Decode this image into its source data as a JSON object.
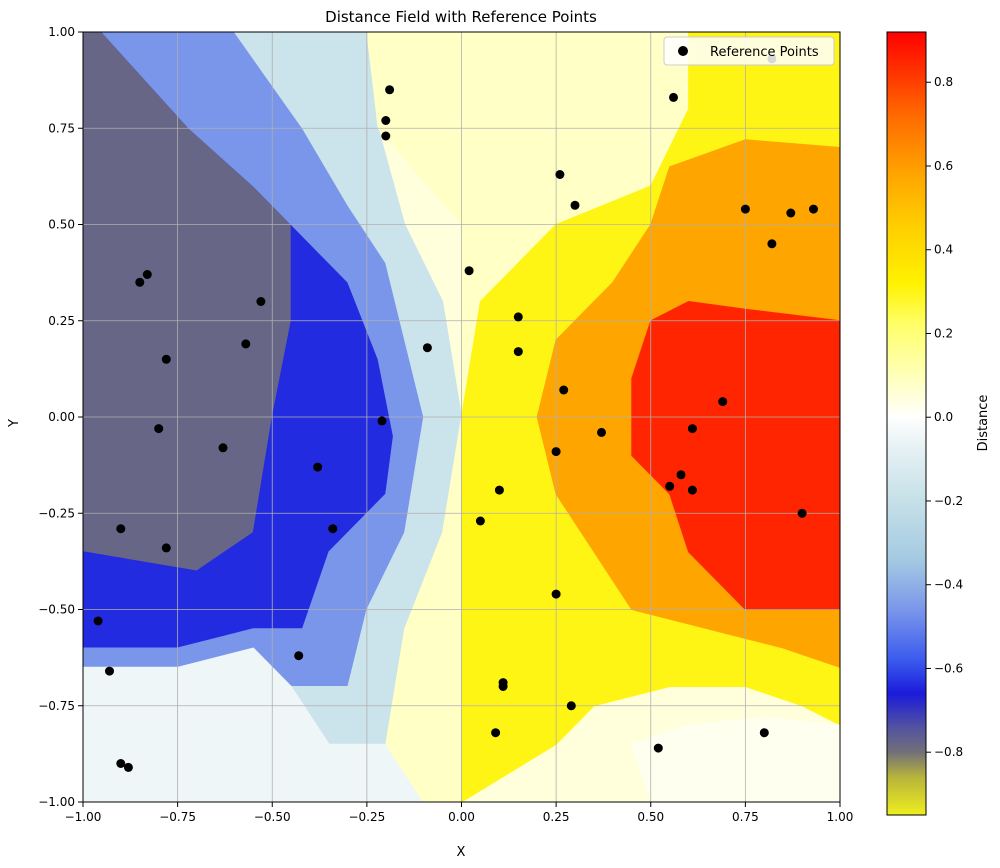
{
  "chart_data": {
    "type": "contour",
    "title": "Distance Field with Reference Points",
    "xlabel": "X",
    "ylabel": "Y",
    "xlim": [
      -1.0,
      1.0
    ],
    "ylim": [
      -1.0,
      1.0
    ],
    "x_ticks": [
      -1.0,
      -0.75,
      -0.5,
      -0.25,
      0.0,
      0.25,
      0.5,
      0.75,
      1.0
    ],
    "y_ticks": [
      -1.0,
      -0.75,
      -0.5,
      -0.25,
      0.0,
      0.25,
      0.5,
      0.75,
      1.0
    ],
    "x_tick_labels": [
      "−1.00",
      "−0.75",
      "−0.50",
      "−0.25",
      "0.00",
      "0.25",
      "0.50",
      "0.75",
      "1.00"
    ],
    "y_tick_labels": [
      "−1.00",
      "−0.75",
      "−0.50",
      "−0.25",
      "0.00",
      "0.25",
      "0.50",
      "0.75",
      "1.00"
    ],
    "grid": true,
    "legend": {
      "location": "top-right",
      "entries": [
        "Reference Points"
      ]
    },
    "colorbar": {
      "label": "Distance",
      "range": [
        -0.95,
        0.92
      ],
      "ticks": [
        -0.8,
        -0.6,
        -0.4,
        -0.2,
        0.0,
        0.2,
        0.4,
        0.6,
        0.8
      ],
      "tick_labels": [
        "−0.8",
        "−0.6",
        "−0.4",
        "−0.2",
        "0.0",
        "0.2",
        "0.4",
        "0.6",
        "0.8"
      ],
      "colormap": [
        {
          "v": -0.95,
          "c": "#eeee1e"
        },
        {
          "v": -0.86,
          "c": "#b8b43c"
        },
        {
          "v": -0.8,
          "c": "#727078"
        },
        {
          "v": -0.74,
          "c": "#5252a2"
        },
        {
          "v": -0.66,
          "c": "#1b1bdb"
        },
        {
          "v": -0.58,
          "c": "#3b5bee"
        },
        {
          "v": -0.46,
          "c": "#7a96ea"
        },
        {
          "v": -0.34,
          "c": "#a4cae2"
        },
        {
          "v": -0.2,
          "c": "#c6e0e8"
        },
        {
          "v": -0.08,
          "c": "#e4f0f4"
        },
        {
          "v": 0.0,
          "c": "#fffffe"
        },
        {
          "v": 0.08,
          "c": "#ffffc6"
        },
        {
          "v": 0.22,
          "c": "#ffff6a"
        },
        {
          "v": 0.32,
          "c": "#fff200"
        },
        {
          "v": 0.46,
          "c": "#ffcd00"
        },
        {
          "v": 0.58,
          "c": "#ffa500"
        },
        {
          "v": 0.72,
          "c": "#ff6a00"
        },
        {
          "v": 0.92,
          "c": "#ff0000"
        }
      ]
    },
    "field_regions": [
      {
        "name": "yellow-lobe-left",
        "polygon": [
          [
            -1.0,
            0.35
          ],
          [
            -0.8,
            0.18
          ],
          [
            -0.6,
            0.16
          ],
          [
            -0.55,
            0.05
          ],
          [
            -0.6,
            -0.3
          ],
          [
            -0.75,
            -0.3
          ],
          [
            -1.0,
            -0.25
          ]
        ],
        "value": -0.88
      },
      {
        "name": "gray-wedge-upper-left",
        "polygon": [
          [
            -1.0,
            1.0
          ],
          [
            -0.95,
            1.0
          ],
          [
            -0.72,
            0.75
          ],
          [
            -0.55,
            0.6
          ],
          [
            -0.45,
            0.5
          ],
          [
            -0.45,
            0.25
          ],
          [
            -0.5,
            0.0
          ],
          [
            -0.55,
            -0.3
          ],
          [
            -0.7,
            -0.4
          ],
          [
            -1.0,
            -0.35
          ],
          [
            -1.0,
            0.35
          ],
          [
            -0.8,
            0.18
          ],
          [
            -0.6,
            0.16
          ],
          [
            -0.55,
            0.05
          ],
          [
            -0.6,
            -0.3
          ],
          [
            -0.75,
            -0.3
          ],
          [
            -1.0,
            -0.25
          ]
        ],
        "value": -0.78
      },
      {
        "name": "blue-band",
        "polygon": [
          [
            -0.95,
            1.0
          ],
          [
            -0.72,
            0.75
          ],
          [
            -0.55,
            0.6
          ],
          [
            -0.45,
            0.5
          ],
          [
            -0.3,
            0.35
          ],
          [
            -0.22,
            0.15
          ],
          [
            -0.18,
            -0.05
          ],
          [
            -0.2,
            -0.2
          ],
          [
            -0.35,
            -0.35
          ],
          [
            -0.42,
            -0.55
          ],
          [
            -0.55,
            -0.55
          ],
          [
            -0.75,
            -0.6
          ],
          [
            -1.0,
            -0.6
          ],
          [
            -1.0,
            -0.35
          ],
          [
            -0.7,
            -0.4
          ],
          [
            -0.55,
            -0.3
          ],
          [
            -0.5,
            0.0
          ],
          [
            -0.45,
            0.25
          ],
          [
            -0.45,
            0.5
          ],
          [
            -0.55,
            0.6
          ],
          [
            -0.72,
            0.75
          ]
        ],
        "value": -0.64
      },
      {
        "name": "light-blue-band",
        "polygon": [
          [
            -0.9,
            1.0
          ],
          [
            -0.6,
            1.0
          ],
          [
            -0.42,
            0.75
          ],
          [
            -0.3,
            0.55
          ],
          [
            -0.2,
            0.4
          ],
          [
            -0.15,
            0.2
          ],
          [
            -0.1,
            0.0
          ],
          [
            -0.15,
            -0.3
          ],
          [
            -0.25,
            -0.5
          ],
          [
            -0.3,
            -0.7
          ],
          [
            -0.45,
            -0.7
          ],
          [
            -0.55,
            -0.6
          ],
          [
            -0.75,
            -0.65
          ],
          [
            -1.0,
            -0.65
          ],
          [
            -1.0,
            -0.6
          ],
          [
            -0.75,
            -0.6
          ],
          [
            -0.55,
            -0.55
          ],
          [
            -0.42,
            -0.55
          ],
          [
            -0.35,
            -0.35
          ],
          [
            -0.2,
            -0.2
          ],
          [
            -0.18,
            -0.05
          ],
          [
            -0.22,
            0.15
          ],
          [
            -0.3,
            0.35
          ],
          [
            -0.45,
            0.5
          ],
          [
            -0.55,
            0.6
          ],
          [
            -0.72,
            0.75
          ],
          [
            -0.95,
            1.0
          ]
        ],
        "value": -0.46
      },
      {
        "name": "pale-cyan-band",
        "polygon": [
          [
            -0.6,
            1.0
          ],
          [
            -0.25,
            1.0
          ],
          [
            -0.22,
            0.75
          ],
          [
            -0.15,
            0.5
          ],
          [
            -0.05,
            0.3
          ],
          [
            0.0,
            0.0
          ],
          [
            -0.05,
            -0.3
          ],
          [
            -0.15,
            -0.55
          ],
          [
            -0.2,
            -0.85
          ],
          [
            -0.35,
            -0.85
          ],
          [
            -0.45,
            -0.7
          ],
          [
            -0.3,
            -0.7
          ],
          [
            -0.25,
            -0.5
          ],
          [
            -0.15,
            -0.3
          ],
          [
            -0.1,
            0.0
          ],
          [
            -0.15,
            0.2
          ],
          [
            -0.2,
            0.4
          ],
          [
            -0.3,
            0.55
          ],
          [
            -0.42,
            0.75
          ]
        ],
        "value": -0.18
      },
      {
        "name": "white-fringe-bottom",
        "polygon": [
          [
            -1.0,
            -0.65
          ],
          [
            -0.75,
            -0.65
          ],
          [
            -0.55,
            -0.6
          ],
          [
            -0.45,
            -0.7
          ],
          [
            -0.35,
            -0.85
          ],
          [
            -0.2,
            -0.85
          ],
          [
            -0.1,
            -1.0
          ],
          [
            -1.0,
            -1.0
          ]
        ],
        "value": -0.05
      },
      {
        "name": "pale-yellow-field",
        "polygon": [
          [
            -0.25,
            1.0
          ],
          [
            0.6,
            1.0
          ],
          [
            0.6,
            0.8
          ],
          [
            0.5,
            0.6
          ],
          [
            0.25,
            0.5
          ],
          [
            0.05,
            0.3
          ],
          [
            0.0,
            0.0
          ],
          [
            -0.05,
            -0.3
          ],
          [
            -0.15,
            -0.55
          ],
          [
            -0.2,
            -0.85
          ],
          [
            -0.1,
            -1.0
          ],
          [
            0.0,
            -1.0
          ],
          [
            0.0,
            0.5
          ],
          [
            -0.22,
            0.75
          ]
        ],
        "value": 0.08
      },
      {
        "name": "yellow-field",
        "polygon": [
          [
            0.6,
            1.0
          ],
          [
            1.0,
            1.0
          ],
          [
            1.0,
            -0.8
          ],
          [
            0.9,
            -0.75
          ],
          [
            0.75,
            -0.7
          ],
          [
            0.55,
            -0.7
          ],
          [
            0.35,
            -0.75
          ],
          [
            0.25,
            -0.85
          ],
          [
            0.0,
            -1.0
          ],
          [
            0.0,
            0.0
          ],
          [
            0.05,
            0.3
          ],
          [
            0.25,
            0.5
          ],
          [
            0.5,
            0.6
          ],
          [
            0.6,
            0.8
          ]
        ],
        "value": 0.3
      },
      {
        "name": "orange-field",
        "polygon": [
          [
            0.55,
            0.65
          ],
          [
            0.75,
            0.72
          ],
          [
            1.0,
            0.7
          ],
          [
            1.0,
            -0.65
          ],
          [
            0.85,
            -0.6
          ],
          [
            0.65,
            -0.55
          ],
          [
            0.45,
            -0.5
          ],
          [
            0.35,
            -0.35
          ],
          [
            0.25,
            -0.2
          ],
          [
            0.2,
            0.0
          ],
          [
            0.25,
            0.2
          ],
          [
            0.4,
            0.35
          ],
          [
            0.5,
            0.5
          ]
        ],
        "value": 0.58
      },
      {
        "name": "red-core",
        "polygon": [
          [
            0.5,
            0.25
          ],
          [
            0.6,
            0.3
          ],
          [
            0.75,
            0.28
          ],
          [
            1.0,
            0.25
          ],
          [
            1.0,
            -0.5
          ],
          [
            0.9,
            -0.5
          ],
          [
            0.75,
            -0.5
          ],
          [
            0.6,
            -0.35
          ],
          [
            0.55,
            -0.2
          ],
          [
            0.45,
            -0.1
          ],
          [
            0.45,
            0.1
          ]
        ],
        "value": 0.85
      },
      {
        "name": "pale-patch-bottom-right",
        "polygon": [
          [
            0.45,
            -0.85
          ],
          [
            0.6,
            -0.8
          ],
          [
            0.8,
            -0.78
          ],
          [
            1.0,
            -0.8
          ],
          [
            1.0,
            -1.0
          ],
          [
            0.5,
            -1.0
          ]
        ],
        "value": 0.02
      }
    ],
    "series": [
      {
        "name": "Reference Points",
        "color": "#000000",
        "points": [
          [
            0.82,
            0.93
          ],
          [
            0.56,
            0.83
          ],
          [
            -0.19,
            0.85
          ],
          [
            -0.2,
            0.77
          ],
          [
            -0.2,
            0.73
          ],
          [
            0.26,
            0.63
          ],
          [
            0.3,
            0.55
          ],
          [
            0.75,
            0.54
          ],
          [
            0.87,
            0.53
          ],
          [
            0.93,
            0.54
          ],
          [
            0.82,
            0.45
          ],
          [
            0.02,
            0.38
          ],
          [
            -0.85,
            0.35
          ],
          [
            -0.83,
            0.37
          ],
          [
            -0.53,
            0.3
          ],
          [
            0.15,
            0.26
          ],
          [
            -0.57,
            0.19
          ],
          [
            -0.09,
            0.18
          ],
          [
            0.15,
            0.17
          ],
          [
            -0.78,
            0.15
          ],
          [
            0.27,
            0.07
          ],
          [
            0.69,
            0.04
          ],
          [
            -0.8,
            -0.03
          ],
          [
            0.37,
            -0.04
          ],
          [
            0.61,
            -0.03
          ],
          [
            -0.21,
            -0.01
          ],
          [
            -0.63,
            -0.08
          ],
          [
            0.25,
            -0.09
          ],
          [
            -0.38,
            -0.13
          ],
          [
            0.58,
            -0.15
          ],
          [
            0.55,
            -0.18
          ],
          [
            0.61,
            -0.19
          ],
          [
            0.1,
            -0.19
          ],
          [
            0.05,
            -0.27
          ],
          [
            0.9,
            -0.25
          ],
          [
            -0.9,
            -0.29
          ],
          [
            -0.34,
            -0.29
          ],
          [
            -0.78,
            -0.34
          ],
          [
            0.25,
            -0.46
          ],
          [
            -0.96,
            -0.53
          ],
          [
            -0.43,
            -0.62
          ],
          [
            -0.93,
            -0.66
          ],
          [
            0.11,
            -0.69
          ],
          [
            0.11,
            -0.7
          ],
          [
            0.29,
            -0.75
          ],
          [
            0.09,
            -0.82
          ],
          [
            0.8,
            -0.82
          ],
          [
            -0.9,
            -0.9
          ],
          [
            -0.88,
            -0.91
          ],
          [
            0.52,
            -0.86
          ]
        ]
      }
    ]
  }
}
